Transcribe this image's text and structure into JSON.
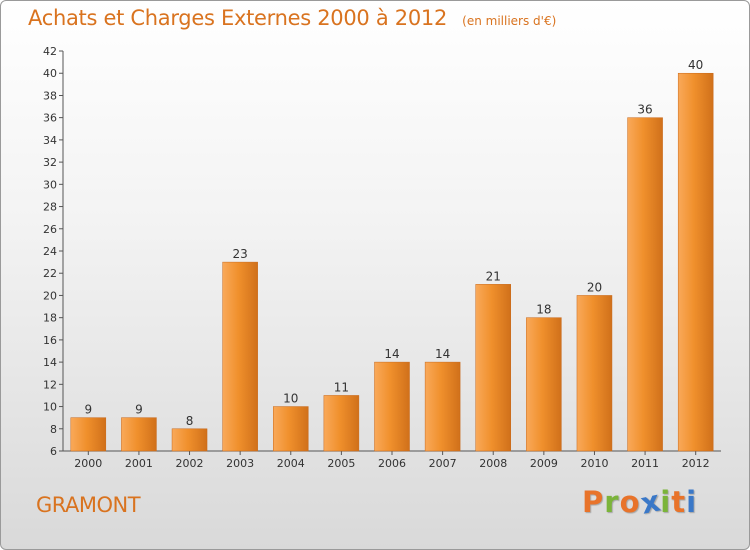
{
  "chart_data": {
    "type": "bar",
    "title": "Achats et Charges Externes 2000 à 2012",
    "subtitle": "(en milliers d'€)",
    "categories": [
      "2000",
      "2001",
      "2002",
      "2003",
      "2004",
      "2005",
      "2006",
      "2007",
      "2008",
      "2009",
      "2010",
      "2011",
      "2012"
    ],
    "values": [
      9,
      9,
      8,
      23,
      10,
      11,
      14,
      14,
      21,
      18,
      20,
      36,
      40
    ],
    "data_labels": [
      "9",
      "9",
      "8",
      "23",
      "10",
      "11",
      "14",
      "14",
      "21",
      "18",
      "20",
      "36",
      "40"
    ],
    "yticks": [
      "6",
      "8",
      "10",
      "12",
      "14",
      "16",
      "18",
      "20",
      "22",
      "24",
      "26",
      "28",
      "30",
      "32",
      "34",
      "36",
      "38",
      "40",
      "42"
    ],
    "ylim": [
      6,
      42
    ],
    "ytick_step": 2,
    "grid": false,
    "bar_color": "#f0902c",
    "bar_color_light": "#f9a95a",
    "bar_color_dark": "#d0701a"
  },
  "footer": {
    "commune": "GRAMONT",
    "brand": "Proxiti",
    "brand_colors": [
      "#e8732a",
      "#7bb43a",
      "#e8732a",
      "#3a78c8",
      "#7bb43a",
      "#e8732a",
      "#3a78c8"
    ]
  },
  "colors": {
    "title": "#d9731f",
    "axis": "#555555",
    "tick_text": "#333333"
  }
}
